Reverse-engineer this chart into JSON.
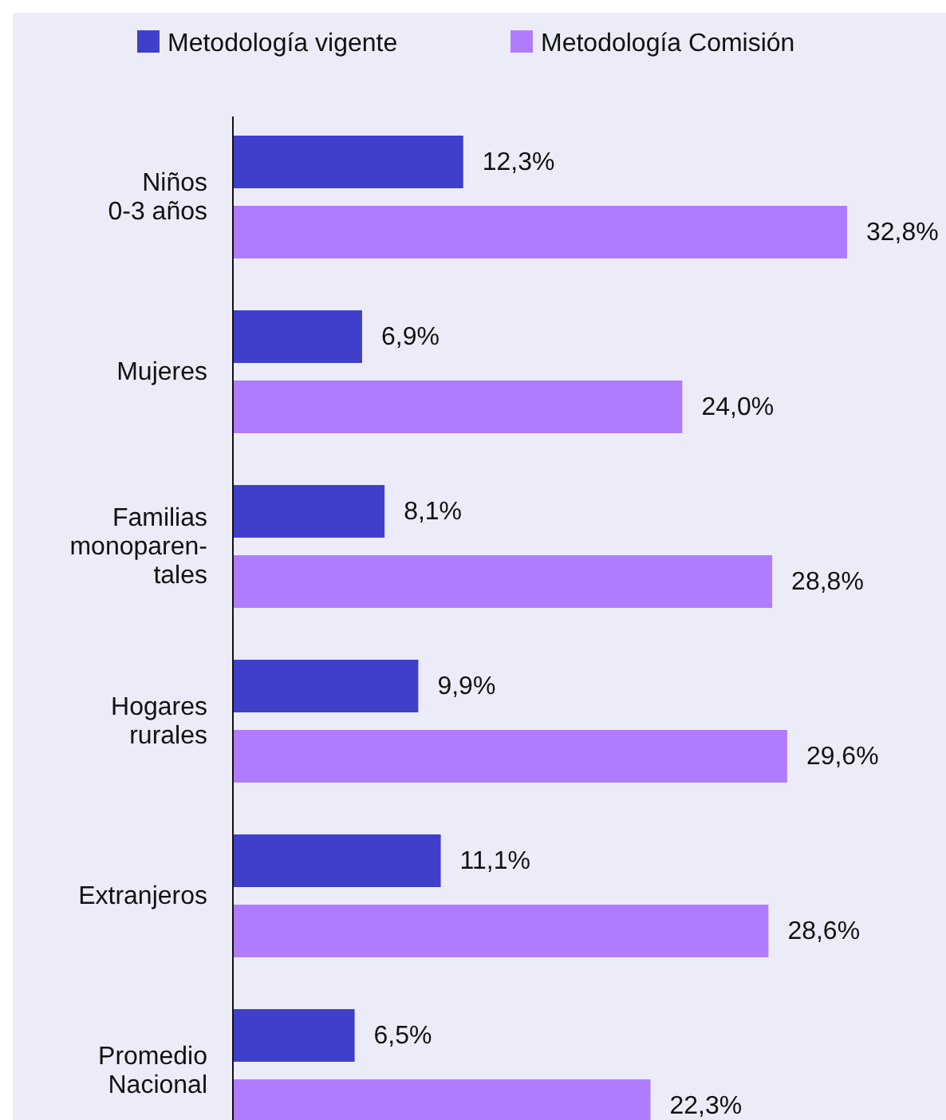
{
  "chart_data": {
    "type": "bar",
    "orientation": "horizontal",
    "legend": "top left",
    "categories": [
      "Niños\n0-3 años",
      "Mujeres",
      "Familias\nmonoparen-\ntales",
      "Hogares\nrurales",
      "Extranjeros",
      "Promedio\nNacional"
    ],
    "series": [
      {
        "name": "Metodología vigente",
        "color": "#3f3fcc",
        "values": [
          12.3,
          6.9,
          8.1,
          9.9,
          11.1,
          6.5
        ],
        "value_labels": [
          "12,3%",
          "6,9%",
          "8,1%",
          "9,9%",
          "11,1%",
          "6,5%"
        ]
      },
      {
        "name": "Metodología Comisión",
        "color": "#b07cff",
        "values": [
          32.8,
          24.0,
          28.8,
          29.6,
          28.6,
          22.3
        ],
        "value_labels": [
          "32,8%",
          "24,0%",
          "28,8%",
          "29,6%",
          "28,6%",
          "22,3%"
        ]
      }
    ]
  }
}
